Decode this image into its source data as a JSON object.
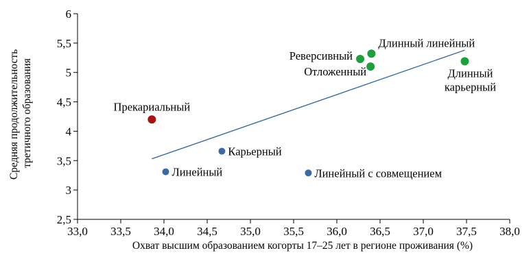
{
  "chart_data": {
    "type": "scatter",
    "title": "",
    "xlabel": "Охват высшим образованием когорты 17–25 лет в регионе проживания (%)",
    "ylabel_lines": [
      "Средняя продолжительность",
      "третичного образования"
    ],
    "xlim": [
      33.0,
      38.0
    ],
    "ylim": [
      2.5,
      6.0
    ],
    "xticks": [
      "33,0",
      "33,5",
      "34,0",
      "34,5",
      "35,0",
      "35,5",
      "36,0",
      "36,5",
      "37,0",
      "37,5",
      "38,0"
    ],
    "yticks": [
      "2,5",
      "3",
      "3,5",
      "4",
      "4,5",
      "5",
      "5,5",
      "6"
    ],
    "grid": false,
    "colors": {
      "green": "#1e9e3c",
      "blue": "#3a69a3",
      "red": "#a51313",
      "line": "#3b6b9a",
      "axis": "#000000"
    },
    "points": [
      {
        "label": [
          "Прекариальный"
        ],
        "x": 33.86,
        "y": 4.2,
        "color": "red",
        "label_pos": "above"
      },
      {
        "label": [
          "Линейный"
        ],
        "x": 34.02,
        "y": 3.31,
        "color": "blue",
        "label_pos": "right"
      },
      {
        "label": [
          "Карьерный"
        ],
        "x": 34.67,
        "y": 3.66,
        "color": "blue",
        "label_pos": "right"
      },
      {
        "label": [
          "Линейный с совмещением"
        ],
        "x": 35.67,
        "y": 3.29,
        "color": "blue",
        "label_pos": "right"
      },
      {
        "label": [
          "Реверсивный"
        ],
        "x": 36.27,
        "y": 5.23,
        "color": "green",
        "label_pos": "left"
      },
      {
        "label": [
          "Длинный линейный"
        ],
        "x": 36.4,
        "y": 5.32,
        "color": "green",
        "label_pos": "upright"
      },
      {
        "label": [
          "Отложенный"
        ],
        "x": 36.39,
        "y": 5.1,
        "color": "green",
        "label_pos": "below-left"
      },
      {
        "label": [
          "Длинный",
          "карьерный"
        ],
        "x": 37.48,
        "y": 5.19,
        "color": "green",
        "label_pos": "below"
      }
    ],
    "trendline": {
      "x": [
        33.86,
        37.48
      ],
      "y": [
        3.53,
        5.38
      ]
    }
  }
}
